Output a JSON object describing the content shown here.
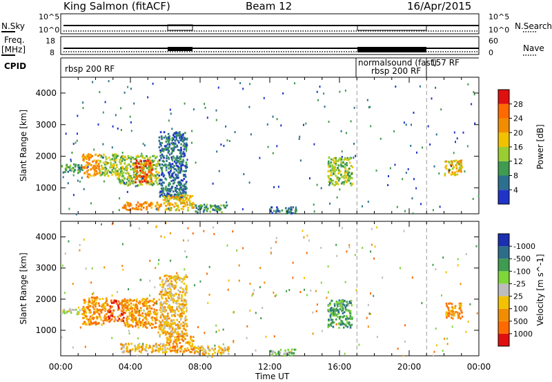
{
  "header": {
    "title": "King Salmon (fitACF)",
    "beam": "Beam 12",
    "date": "16/Apr/2015"
  },
  "status": {
    "nsky_label": "N.Sky",
    "nsearch_label": "N.Search",
    "freq_label_1": "Freq.",
    "freq_label_2": "[MHz]",
    "nave_label": "Nave",
    "cpid_label": "CPID",
    "noise_ticks_left": [
      "10^5",
      "10^0"
    ],
    "noise_ticks_right": [
      "10^5",
      "10^0"
    ],
    "freq_ticks": [
      "18",
      "8"
    ],
    "nave_ticks": [
      "60",
      "0"
    ],
    "cpid_segments": [
      {
        "label": "rbsp 200 RF",
        "start_hour": 0,
        "end_hour": 17.0
      },
      {
        "label": "normalsound (fast)",
        "start_hour": 17.0,
        "end_hour": 21.0
      },
      {
        "label": "rbsp 200 RF",
        "start_hour": 17.0,
        "end_hour": 21.0
      },
      {
        "label": "157 RF",
        "start_hour": 21.0,
        "end_hour": 24.0
      }
    ]
  },
  "chart_data": [
    {
      "type": "heatmap",
      "parameter": "Power",
      "x_range_hours": [
        0,
        24
      ],
      "ylabel": "Slant Range [km]",
      "y_range_km": [
        180,
        4500
      ],
      "y_ticks": [
        1000,
        2000,
        3000,
        4000
      ],
      "colorbar": {
        "label": "Power [dB]",
        "ticks": [
          "4",
          "8",
          "12",
          "16",
          "20",
          "24",
          "28"
        ],
        "colors": [
          "#1f33c9",
          "#2c6f8f",
          "#3f9b4f",
          "#9acd32",
          "#f2c200",
          "#f28c00",
          "#ff6a00",
          "#e01010"
        ],
        "range": [
          0,
          32
        ]
      },
      "regions": [
        {
          "t0": 0.0,
          "t1": 1.2,
          "r0": 1500,
          "r1": 1800,
          "level": 2
        },
        {
          "t0": 1.2,
          "t1": 2.2,
          "r0": 1350,
          "r1": 2100,
          "level": 5
        },
        {
          "t0": 2.2,
          "t1": 3.2,
          "r0": 1400,
          "r1": 2100,
          "level": 3
        },
        {
          "t0": 3.2,
          "t1": 5.6,
          "r0": 1100,
          "r1": 2050,
          "level": 3
        },
        {
          "t0": 4.2,
          "t1": 5.2,
          "r0": 1200,
          "r1": 1900,
          "level": 6
        },
        {
          "t0": 5.6,
          "t1": 7.2,
          "r0": 700,
          "r1": 2800,
          "level": 1
        },
        {
          "t0": 3.5,
          "t1": 5.8,
          "r0": 320,
          "r1": 580,
          "level": 5
        },
        {
          "t0": 5.8,
          "t1": 7.6,
          "r0": 320,
          "r1": 800,
          "level": 4
        },
        {
          "t0": 7.6,
          "t1": 9.5,
          "r0": 250,
          "r1": 500,
          "level": 2
        },
        {
          "t0": 12.0,
          "t1": 13.5,
          "r0": 220,
          "r1": 420,
          "level": 1
        },
        {
          "t0": 15.3,
          "t1": 16.7,
          "r0": 1100,
          "r1": 2000,
          "level": 3
        },
        {
          "t0": 22.0,
          "t1": 23.0,
          "r0": 1400,
          "r1": 1900,
          "level": 4
        }
      ],
      "markers": [
        17.0,
        21.0
      ]
    },
    {
      "type": "heatmap",
      "parameter": "Velocity",
      "x_range_hours": [
        0,
        24
      ],
      "xlabel": "Time UT",
      "x_ticks": [
        "00:00",
        "04:00",
        "08:00",
        "12:00",
        "16:00",
        "20:00",
        "00:00"
      ],
      "ylabel": "Slant Range [km]",
      "y_range_km": [
        180,
        4500
      ],
      "y_ticks": [
        1000,
        2000,
        3000,
        4000
      ],
      "colorbar": {
        "label": "Velocity [m s^-1]",
        "ticks": [
          "1000",
          "500",
          "100",
          "25",
          "-25",
          "-100",
          "-500",
          "-1000"
        ],
        "colors": [
          "#1b2fb0",
          "#2e6d8a",
          "#3f9b4f",
          "#7fd63a",
          "#bdbdbd",
          "#f2c200",
          "#f28c00",
          "#ff6a00",
          "#e01010"
        ],
        "range": [
          -1000,
          1000
        ]
      },
      "regions": [
        {
          "t0": 0.0,
          "t1": 1.4,
          "r0": 1550,
          "r1": 1750,
          "level": 4
        },
        {
          "t0": 1.2,
          "t1": 2.6,
          "r0": 1200,
          "r1": 2100,
          "level": 6
        },
        {
          "t0": 2.6,
          "t1": 3.6,
          "r0": 1300,
          "r1": 2000,
          "level": 7
        },
        {
          "t0": 3.6,
          "t1": 5.5,
          "r0": 1100,
          "r1": 2050,
          "level": 6
        },
        {
          "t0": 5.6,
          "t1": 7.2,
          "r0": 800,
          "r1": 2800,
          "level": 5
        },
        {
          "t0": 3.4,
          "t1": 6.0,
          "r0": 320,
          "r1": 600,
          "level": 5
        },
        {
          "t0": 6.0,
          "t1": 7.6,
          "r0": 320,
          "r1": 850,
          "level": 6
        },
        {
          "t0": 7.6,
          "t1": 9.6,
          "r0": 250,
          "r1": 520,
          "level": 5
        },
        {
          "t0": 12.0,
          "t1": 13.5,
          "r0": 220,
          "r1": 420,
          "level": 3
        },
        {
          "t0": 15.3,
          "t1": 16.7,
          "r0": 1100,
          "r1": 2000,
          "level": 2
        },
        {
          "t0": 22.0,
          "t1": 23.0,
          "r0": 1400,
          "r1": 1900,
          "level": 6
        }
      ],
      "markers": [
        17.0,
        21.0
      ]
    }
  ]
}
